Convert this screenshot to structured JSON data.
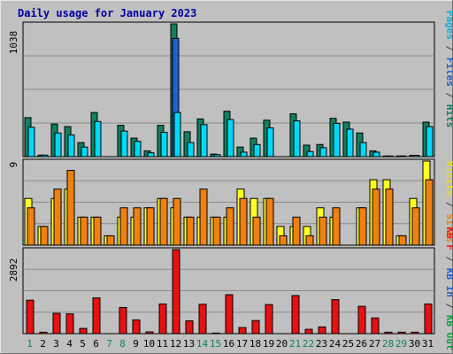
{
  "title": "Daily usage for January 2023",
  "right_labels": {
    "top": [
      {
        "text": "Pages",
        "color": "#00b4e8"
      },
      {
        "text": " / ",
        "color": "#444444"
      },
      {
        "text": "Files",
        "color": "#2060d0"
      },
      {
        "text": " / ",
        "color": "#444444"
      },
      {
        "text": "Hits",
        "color": "#108060"
      }
    ],
    "middle": [
      {
        "text": "Visits",
        "color": "#e8e000"
      },
      {
        "text": " / ",
        "color": "#444444"
      },
      {
        "text": "Sites",
        "color": "#f08010"
      }
    ],
    "bottom": [
      {
        "text": "KB F",
        "color": "#e02020"
      },
      {
        "text": " / ",
        "color": "#444444"
      },
      {
        "text": "KB In",
        "color": "#2060d0"
      },
      {
        "text": " / ",
        "color": "#444444"
      },
      {
        "text": "KB Out",
        "color": "#10a040"
      }
    ]
  },
  "y_max_labels": {
    "top": "1038",
    "middle": "9",
    "bottom": "2892"
  },
  "x_labels": [
    "1",
    "2",
    "3",
    "4",
    "5",
    "6",
    "7",
    "8",
    "9",
    "10",
    "11",
    "12",
    "13",
    "14",
    "15",
    "16",
    "17",
    "18",
    "19",
    "20",
    "21",
    "22",
    "23",
    "24",
    "25",
    "26",
    "27",
    "28",
    "29",
    "30",
    "31"
  ],
  "weekend_days": [
    1,
    7,
    8,
    14,
    15,
    21,
    22,
    28,
    29
  ],
  "colors": {
    "hits": "#108060",
    "files": "#2060d0",
    "pages": "#00d8f8",
    "visits": "#ffff20",
    "sites": "#f08010",
    "kb": "#e81010",
    "weekday_label": "#000000",
    "weekend_label": "#108060",
    "title": "#0000a0",
    "panel_bg": "#c0c0c0"
  },
  "chart_data": [
    {
      "type": "bar",
      "title": "Daily usage for January 2023",
      "ylim": [
        0,
        1038
      ],
      "categories": [
        "1",
        "2",
        "3",
        "4",
        "5",
        "6",
        "7",
        "8",
        "9",
        "10",
        "11",
        "12",
        "13",
        "14",
        "15",
        "16",
        "17",
        "18",
        "19",
        "20",
        "21",
        "22",
        "23",
        "24",
        "25",
        "26",
        "27",
        "28",
        "29",
        "30",
        "31"
      ],
      "series": [
        {
          "name": "Hits",
          "values": [
            305,
            12,
            255,
            235,
            110,
            345,
            0,
            245,
            145,
            45,
            245,
            1038,
            195,
            295,
            20,
            355,
            75,
            145,
            285,
            0,
            335,
            90,
            95,
            300,
            270,
            185,
            45,
            5,
            5,
            10,
            270
          ]
        },
        {
          "name": "Files",
          "values": [
            0,
            0,
            0,
            0,
            0,
            0,
            0,
            0,
            0,
            0,
            0,
            925,
            0,
            0,
            0,
            0,
            0,
            0,
            0,
            0,
            0,
            0,
            0,
            0,
            0,
            0,
            0,
            0,
            0,
            0,
            0
          ]
        },
        {
          "name": "Pages",
          "values": [
            230,
            12,
            185,
            170,
            75,
            275,
            0,
            200,
            120,
            30,
            190,
            345,
            110,
            250,
            15,
            290,
            35,
            95,
            225,
            0,
            280,
            40,
            70,
            260,
            215,
            110,
            35,
            5,
            5,
            10,
            235
          ]
        }
      ]
    },
    {
      "type": "bar",
      "ylim": [
        0,
        9
      ],
      "categories": [
        "1",
        "2",
        "3",
        "4",
        "5",
        "6",
        "7",
        "8",
        "9",
        "10",
        "11",
        "12",
        "13",
        "14",
        "15",
        "16",
        "17",
        "18",
        "19",
        "20",
        "21",
        "22",
        "23",
        "24",
        "25",
        "26",
        "27",
        "28",
        "29",
        "30",
        "31"
      ],
      "series": [
        {
          "name": "Visits",
          "values": [
            5,
            2,
            5,
            6,
            3,
            3,
            1,
            3,
            3,
            4,
            5,
            4,
            3,
            3,
            3,
            3,
            6,
            5,
            5,
            2,
            2,
            2,
            4,
            3,
            0,
            4,
            7,
            7,
            1,
            5,
            9
          ]
        },
        {
          "name": "Sites",
          "values": [
            4,
            2,
            6,
            8,
            3,
            3,
            1,
            4,
            4,
            4,
            5,
            5,
            3,
            6,
            3,
            4,
            5,
            3,
            5,
            1,
            3,
            1,
            3,
            4,
            0,
            4,
            6,
            6,
            1,
            4,
            7
          ]
        }
      ]
    },
    {
      "type": "bar",
      "ylim": [
        0,
        2892
      ],
      "categories": [
        "1",
        "2",
        "3",
        "4",
        "5",
        "6",
        "7",
        "8",
        "9",
        "10",
        "11",
        "12",
        "13",
        "14",
        "15",
        "16",
        "17",
        "18",
        "19",
        "20",
        "21",
        "22",
        "23",
        "24",
        "25",
        "26",
        "27",
        "28",
        "29",
        "30",
        "31"
      ],
      "series": [
        {
          "name": "KB F",
          "values": [
            1150,
            50,
            700,
            680,
            180,
            1230,
            0,
            900,
            470,
            60,
            1020,
            2892,
            440,
            1010,
            20,
            1340,
            210,
            450,
            1000,
            0,
            1310,
            150,
            230,
            1170,
            0,
            940,
            540,
            50,
            50,
            50,
            1020
          ]
        },
        {
          "name": "KB In",
          "values": [
            0,
            0,
            0,
            0,
            0,
            0,
            0,
            0,
            0,
            0,
            0,
            0,
            0,
            0,
            0,
            0,
            0,
            0,
            0,
            0,
            0,
            0,
            0,
            0,
            0,
            0,
            0,
            0,
            0,
            0,
            0
          ]
        },
        {
          "name": "KB Out",
          "values": [
            0,
            0,
            0,
            0,
            0,
            0,
            0,
            0,
            0,
            0,
            0,
            0,
            0,
            0,
            0,
            0,
            0,
            0,
            0,
            0,
            0,
            0,
            0,
            0,
            0,
            0,
            0,
            0,
            0,
            0,
            0
          ]
        }
      ]
    }
  ]
}
